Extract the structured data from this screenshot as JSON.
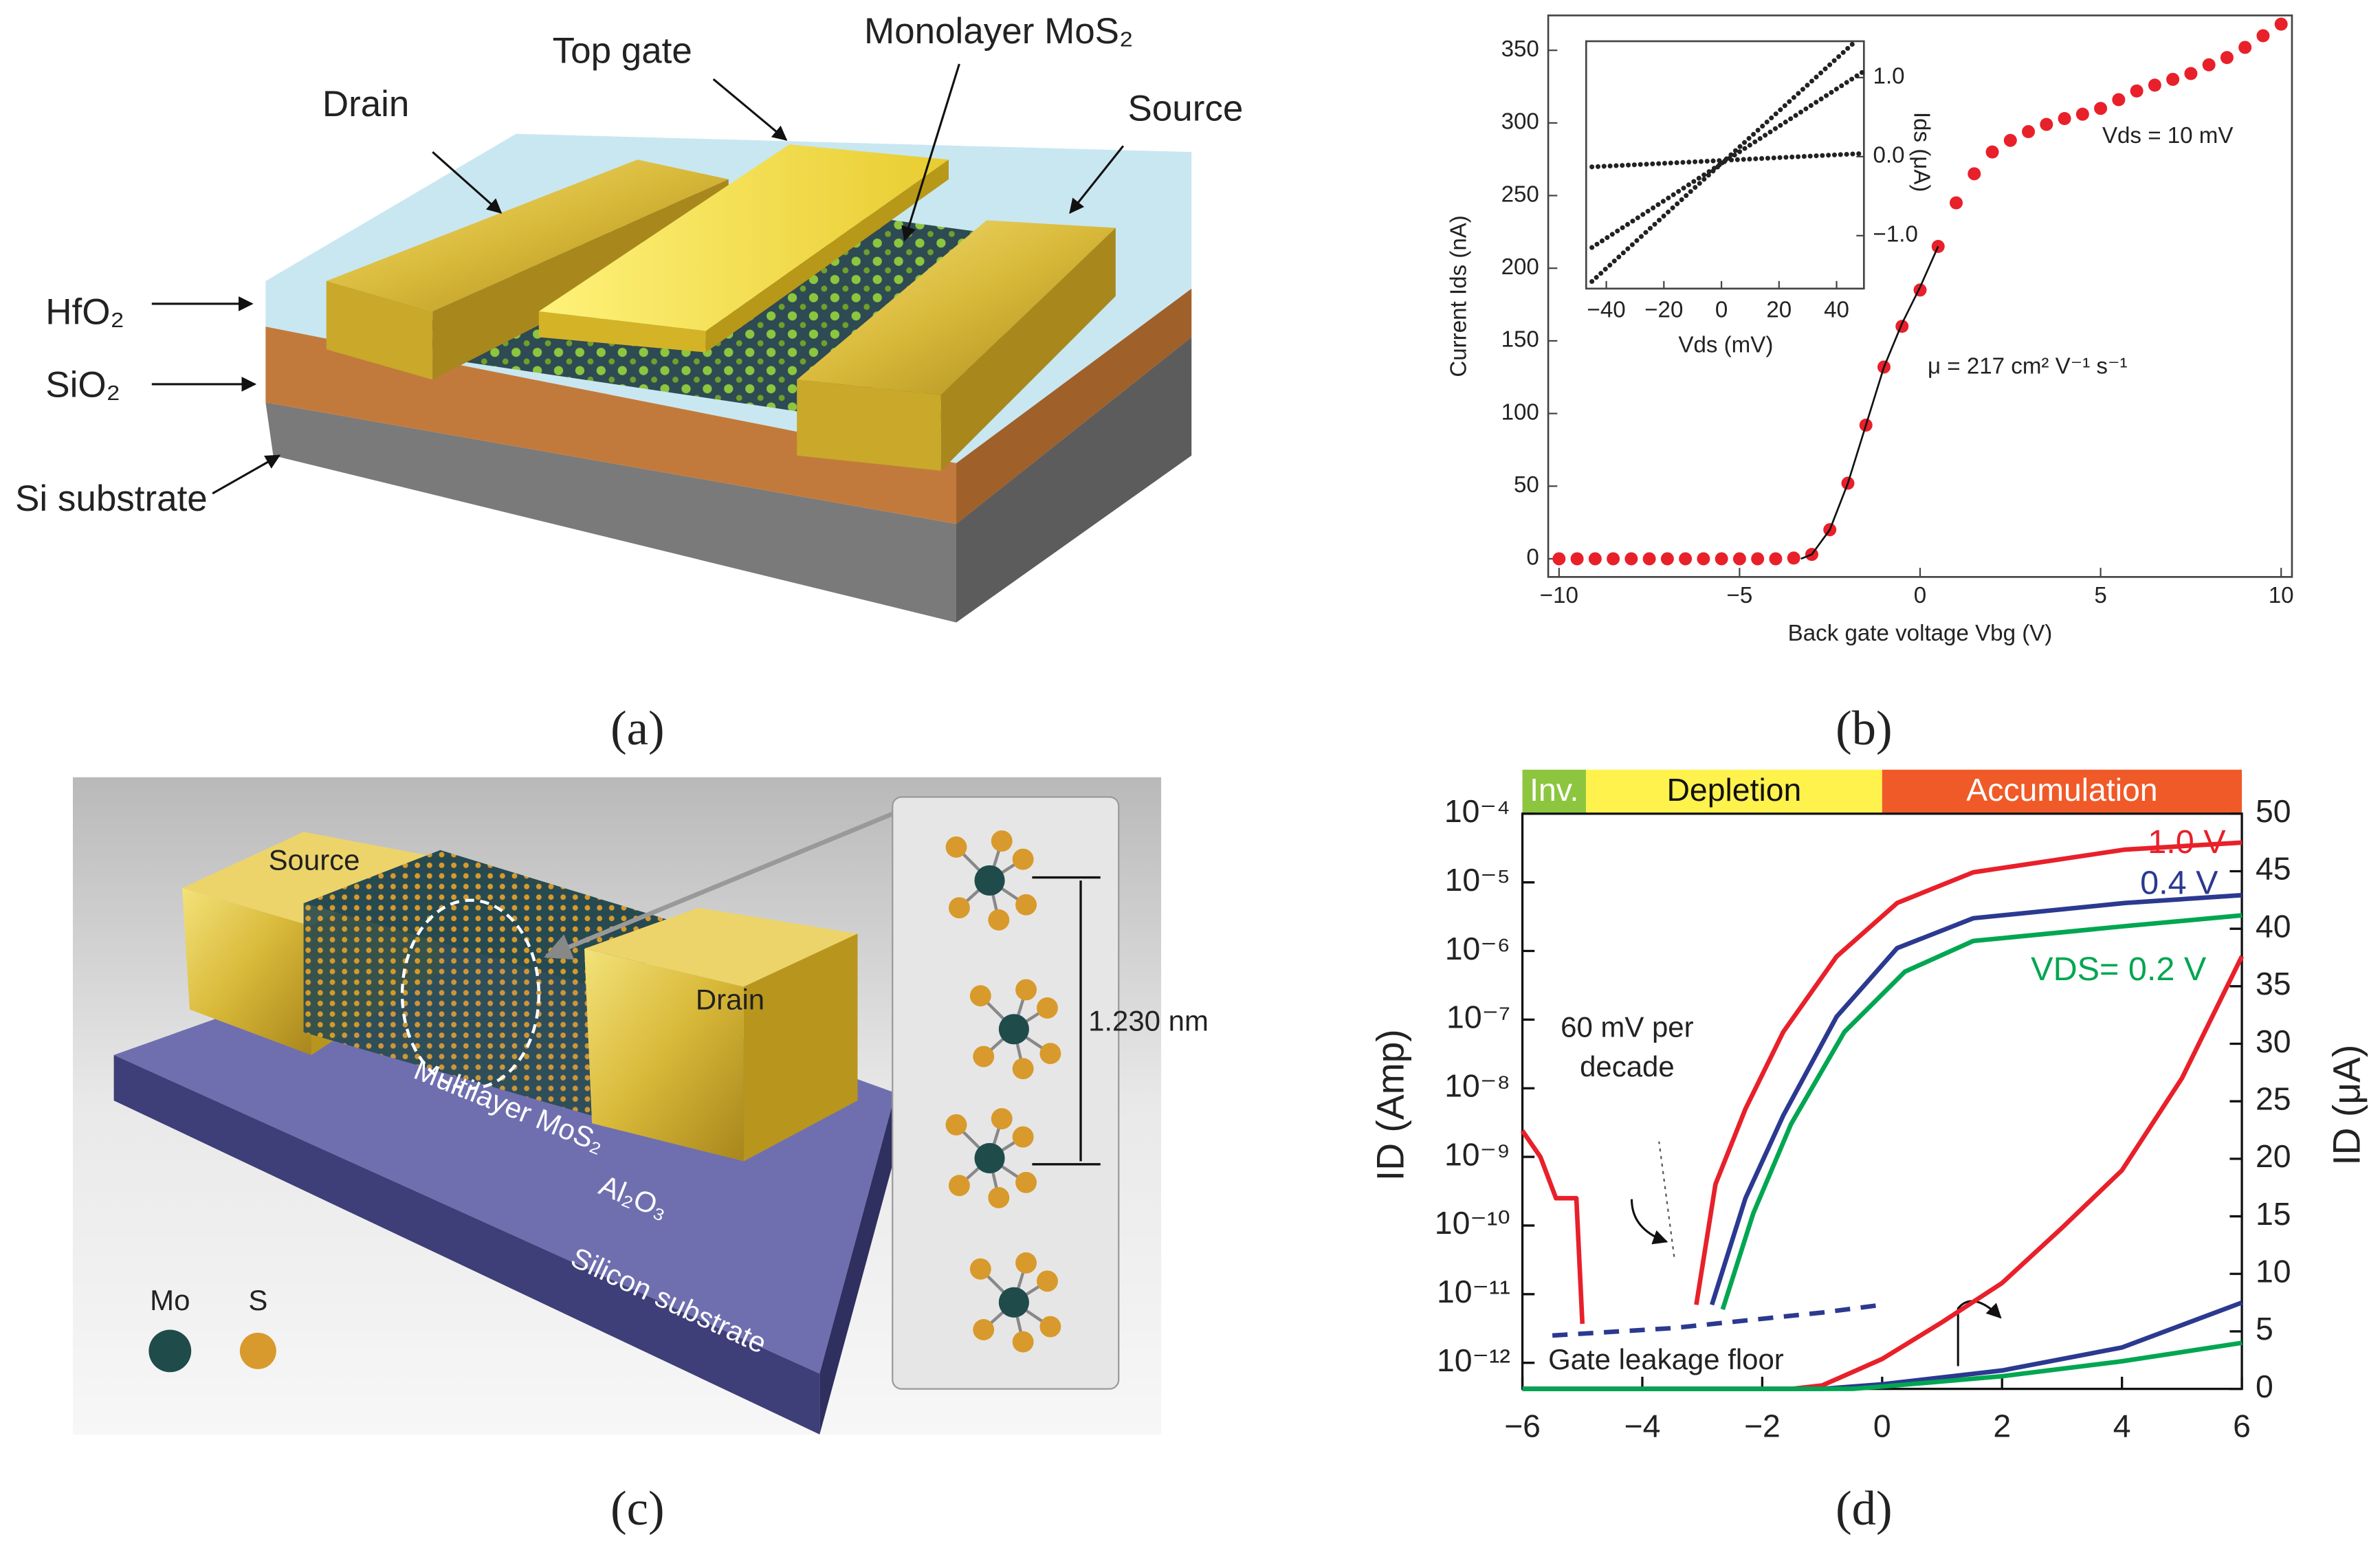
{
  "captions": [
    "(a)",
    "(b)",
    "(c)",
    "(d)"
  ],
  "figure_a": {
    "labels": [
      "Top gate",
      "Monolayer MoS₂",
      "Drain",
      "Source",
      "HfO₂",
      "SiO₂",
      "Si substrate"
    ]
  },
  "figure_c": {
    "labels": [
      "Source",
      "Drain",
      "Multilayer MoS₂",
      "Al₂O₃",
      "Silicon substrate",
      "Mo",
      "S",
      "1.230 nm"
    ]
  },
  "chart_data": [
    {
      "type": "scatter",
      "xlabel": "Back gate voltage Vbg (V)",
      "ylabel": "Current Ids (nA)",
      "annotations": [
        "Vds = 10 mV",
        "μ = 217 cm² V⁻¹ s⁻¹"
      ],
      "xlim": [
        -10.3,
        10.3
      ],
      "ylim": [
        -12.5,
        374
      ],
      "xticks": [
        {
          "value": -10,
          "label": "−10"
        },
        {
          "value": -5,
          "label": "−5"
        },
        0,
        5,
        10
      ],
      "yticks": [
        0,
        50,
        100,
        150,
        200,
        250,
        300,
        350
      ],
      "series": [
        {
          "style": "dots",
          "color": "#e8202a",
          "x": [
            -10,
            -9.5,
            -9,
            -8.5,
            -8,
            -7.5,
            -7,
            -6.5,
            -6,
            -5.5,
            -5,
            -4.5,
            -4,
            -3.5,
            -3,
            -2.5,
            -2,
            -1.5,
            -1,
            -0.5,
            0,
            0.5,
            1,
            1.5,
            2,
            2.5,
            3,
            3.5,
            4,
            4.5,
            5,
            5.5,
            6,
            6.5,
            7,
            7.5,
            8,
            8.5,
            9,
            9.5,
            10
          ],
          "values": [
            0,
            0,
            0,
            0,
            0,
            0,
            0,
            0,
            0,
            0,
            0,
            0,
            0,
            0.5,
            3,
            20,
            52,
            92,
            132,
            160,
            185,
            215,
            245,
            265,
            280,
            288,
            294,
            299,
            303,
            306,
            310,
            316,
            322,
            326,
            330,
            334,
            340,
            345,
            352,
            360,
            368
          ]
        },
        {
          "style": "line",
          "color": "#111111",
          "x": [
            -3.3,
            -3,
            -2.5,
            -2,
            -1.5,
            -1,
            -0.5,
            0,
            0.5
          ],
          "values": [
            0,
            3,
            20,
            52,
            92,
            132,
            162,
            187,
            215
          ]
        }
      ],
      "inset": {
        "type": "line",
        "xlabel": "Vds (mV)",
        "ylabel": "Ids (μA)",
        "xlim": [
          -47,
          49.5
        ],
        "ylim": [
          -1.67,
          1.46
        ],
        "xticks": [
          {
            "value": -40,
            "label": "−40"
          },
          {
            "value": -20,
            "label": "−20"
          },
          0,
          20,
          40
        ],
        "yticks": [
          {
            "value": -1,
            "label": "−1.0"
          },
          {
            "value": 0,
            "label": "0.0"
          },
          {
            "value": 1,
            "label": "1.0"
          }
        ],
        "series": [
          {
            "color": "#222222",
            "x": [
              -45,
              46
            ],
            "values": [
              -1.58,
              1.44
            ]
          },
          {
            "color": "#222222",
            "x": [
              -45,
              49.5
            ],
            "values": [
              -1.15,
              1.08
            ]
          },
          {
            "color": "#222222",
            "x": [
              -45,
              49.5
            ],
            "values": [
              -0.13,
              0.04
            ]
          }
        ]
      }
    },
    {
      "type": "line",
      "ylabel": "ID (Amp)",
      "y2label": "ID (μA)",
      "annotations": [
        [
          "60 mV per",
          "decade"
        ],
        [
          "Gate leakage floor"
        ]
      ],
      "log_y": true,
      "xlim": [
        -6,
        6
      ],
      "ylim": [
        4.17e-13,
        0.0001
      ],
      "y2lim": [
        0,
        50
      ],
      "xticks": [
        {
          "value": -6,
          "label": "−6"
        },
        {
          "value": -4,
          "label": "−4"
        },
        {
          "value": -2,
          "label": "−2"
        },
        0,
        2,
        4,
        6
      ],
      "yticks": [
        {
          "value": 1e-12,
          "label": "10⁻¹²"
        },
        {
          "value": 1e-11,
          "label": "10⁻¹¹"
        },
        {
          "value": 1e-10,
          "label": "10⁻¹⁰"
        },
        {
          "value": 1e-09,
          "label": "10⁻⁹"
        },
        {
          "value": 1e-08,
          "label": "10⁻⁸"
        },
        {
          "value": 1e-07,
          "label": "10⁻⁷"
        },
        {
          "value": 1e-06,
          "label": "10⁻⁶"
        },
        {
          "value": 1e-05,
          "label": "10⁻⁵"
        },
        {
          "value": 0.0001,
          "label": "10⁻⁴"
        }
      ],
      "y2ticks": [
        0,
        5,
        10,
        15,
        20,
        25,
        30,
        35,
        40,
        45,
        50
      ],
      "bands": [
        {
          "label": "Inv.",
          "from": -6,
          "to": -4.94,
          "color": "#8cc63f",
          "label_color": "#ffffff"
        },
        {
          "label": "Depletion",
          "from": -4.94,
          "to": 0,
          "color": "#fff24d",
          "label_color": "#111111"
        },
        {
          "label": "Accumulation",
          "from": 0,
          "to": 6,
          "color": "#f05a28",
          "label_color": "#ffffff"
        }
      ],
      "series": [
        {
          "name": "1.0 V",
          "color": "#e8202a",
          "axis": "y",
          "x": [
            -3.1,
            -2.78,
            -2.28,
            -1.65,
            -0.76,
            0.25,
            1.52,
            4.05,
            6
          ],
          "values": [
            7e-12,
            4e-10,
            5e-09,
            6.6e-08,
            8.3e-07,
            5e-06,
            1.4e-05,
            3e-05,
            3.8e-05
          ]
        },
        {
          "name": "0.4 V",
          "color": "#2b3990",
          "axis": "y",
          "x": [
            -2.84,
            -2.28,
            -1.65,
            -0.76,
            0.25,
            1.52,
            4.05,
            6
          ],
          "values": [
            7e-12,
            2.5e-10,
            4e-09,
            1.1e-07,
            1.1e-06,
            3e-06,
            5e-06,
            6.5e-06
          ]
        },
        {
          "name": "VDS= 0.2 V",
          "color": "#00a651",
          "axis": "y",
          "x": [
            -2.66,
            -2.15,
            -1.52,
            -0.63,
            0.38,
            1.52,
            4.05,
            6
          ],
          "values": [
            6e-12,
            1.5e-10,
            3e-09,
            6.6e-08,
            5e-07,
            1.4e-06,
            2.3e-06,
            3.3e-06
          ]
        },
        {
          "color": "#e8202a",
          "axis": "y",
          "x": [
            -6,
            -5.7,
            -5.44,
            -5.1,
            -5.0
          ],
          "values": [
            2.4e-09,
            1e-09,
            2.5e-10,
            2.5e-10,
            3.7e-12
          ]
        },
        {
          "color": "#2b3990",
          "axis": "y",
          "dash": true,
          "x": [
            -5.5,
            -3.5,
            -1,
            0
          ],
          "values": [
            2.5e-12,
            3.2e-12,
            5.4e-12,
            7e-12
          ]
        },
        {
          "color": "#e8202a",
          "axis": "y2",
          "x": [
            -6,
            -1.5,
            -1,
            0,
            1,
            2,
            3,
            4,
            5,
            6
          ],
          "values": [
            0,
            0,
            0.3,
            2.6,
            5.8,
            9.2,
            14,
            19,
            27,
            37.6
          ]
        },
        {
          "color": "#2b3990",
          "axis": "y2",
          "x": [
            -6,
            -1,
            0,
            2,
            4,
            6
          ],
          "values": [
            0,
            0,
            0.4,
            1.6,
            3.6,
            7.5
          ]
        },
        {
          "color": "#00a651",
          "axis": "y2",
          "x": [
            -6,
            -0.5,
            0,
            2,
            4,
            6
          ],
          "values": [
            0,
            0,
            0.2,
            1.1,
            2.4,
            4
          ]
        }
      ]
    }
  ]
}
